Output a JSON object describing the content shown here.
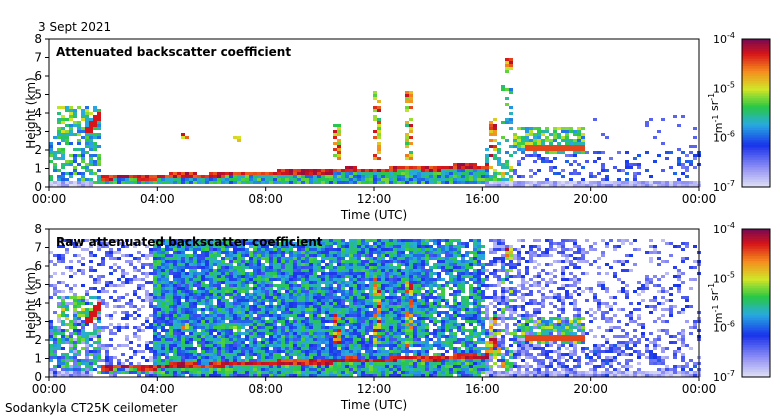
{
  "date": "3 Sept 2021",
  "caption": "Sodankyla CT25K ceilometer",
  "chart_data": [
    {
      "type": "heatmap",
      "title": "Attenuated backscatter coefficient",
      "xlabel": "Time (UTC)",
      "ylabel": "Height (km)",
      "xticks": [
        "00:00",
        "04:00",
        "08:00",
        "12:00",
        "16:00",
        "20:00",
        "00:00"
      ],
      "xlim_hours": [
        0,
        24
      ],
      "ylim_km": [
        0,
        8
      ],
      "yticks": [
        0,
        1,
        2,
        3,
        4,
        5,
        6,
        7,
        8
      ],
      "colorbar": {
        "scale": "log",
        "range": [
          1e-07,
          0.0001
        ],
        "ticks": [
          "10^-7",
          "10^-6",
          "10^-5",
          "10^-4"
        ],
        "unit": "m-1 sr-1"
      },
      "features": [
        {
          "name": "boundary layer",
          "from_h": 1.8,
          "to_h": 16.0,
          "start_km": 0.55,
          "end_km": 1.2
        },
        {
          "name": "morning cloud",
          "from_h": 0.3,
          "to_h": 1.8,
          "base_km": 3.0,
          "top_km": 4.3
        },
        {
          "name": "evening cloud",
          "from_h": 17.0,
          "to_h": 19.5,
          "base_km": 1.9,
          "top_km": 3.2
        },
        {
          "name": "high cloud",
          "at_h": 16.8,
          "base_km": 6.5,
          "top_km": 7.0
        }
      ]
    },
    {
      "type": "heatmap",
      "title": "Raw attenuated backscatter coefficient",
      "xlabel": "Time (UTC)",
      "ylabel": "Height (km)",
      "xticks": [
        "00:00",
        "04:00",
        "08:00",
        "12:00",
        "16:00",
        "20:00",
        "00:00"
      ],
      "xlim_hours": [
        0,
        24
      ],
      "ylim_km": [
        0,
        8
      ],
      "yticks": [
        0,
        1,
        2,
        3,
        4,
        5,
        6,
        7,
        8
      ],
      "colorbar": {
        "scale": "log",
        "range": [
          1e-07,
          0.0001
        ],
        "ticks": [
          "10^-7",
          "10^-6",
          "10^-5",
          "10^-4"
        ],
        "unit": "m-1 sr-1"
      }
    }
  ]
}
